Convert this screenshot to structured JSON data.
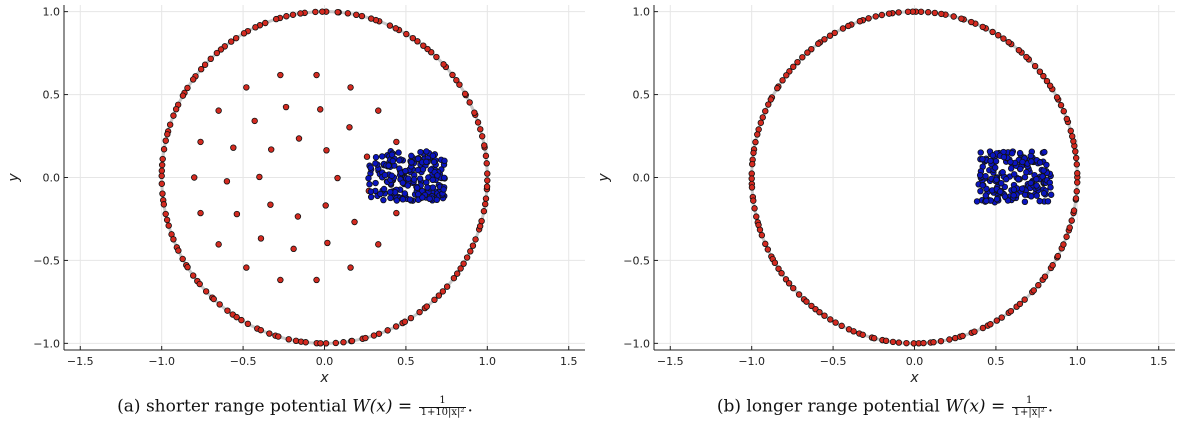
{
  "chart_data": [
    {
      "type": "scatter",
      "panel_id": "a",
      "xlabel": "x",
      "ylabel": "y",
      "xlim": [
        -1.6,
        1.6
      ],
      "ylim": [
        -1.04,
        1.04
      ],
      "xticks": [
        -1.5,
        -1.0,
        -0.5,
        0.0,
        0.5,
        1.0,
        1.5
      ],
      "yticks": [
        -1.0,
        -0.5,
        0.0,
        0.5,
        1.0
      ],
      "xtick_labels": [
        "−1.5",
        "−1.0",
        "−0.5",
        "0.0",
        "0.5",
        "1.0",
        "1.5"
      ],
      "ytick_labels": [
        "−1.0",
        "−0.5",
        "0.0",
        "0.5",
        "1.0"
      ],
      "grid": true,
      "caption_prefix": "(a) shorter range potential ",
      "caption_lhs": "W(x) = ",
      "caption_num": "1",
      "caption_den": "1+10|x|²",
      "caption_suffix": ".",
      "unit_circle": {
        "radius": 1.0,
        "color": "#c8c8c8"
      },
      "circle_points_count": 150,
      "interior_rings": [
        {
          "radius": 0.64,
          "count": 18
        },
        {
          "radius": 0.44,
          "count": 13
        },
        {
          "radius": 0.24,
          "count": 8
        }
      ],
      "cluster": {
        "x_range": [
          0.27,
          0.74
        ],
        "y_range": [
          -0.14,
          0.16
        ],
        "count": 200
      },
      "colors": {
        "circle_points": "#d42a20",
        "interior_points": "#d42a20",
        "cluster_points": "#0a14c0"
      }
    },
    {
      "type": "scatter",
      "panel_id": "b",
      "xlabel": "x",
      "ylabel": "y",
      "xlim": [
        -1.6,
        1.6
      ],
      "ylim": [
        -1.04,
        1.04
      ],
      "xticks": [
        -1.5,
        -1.0,
        -0.5,
        0.0,
        0.5,
        1.0,
        1.5
      ],
      "yticks": [
        -1.0,
        -0.5,
        0.0,
        0.5,
        1.0
      ],
      "xtick_labels": [
        "−1.5",
        "−1.0",
        "−0.5",
        "0.0",
        "0.5",
        "1.0",
        "1.5"
      ],
      "ytick_labels": [
        "−1.0",
        "−0.5",
        "0.0",
        "0.5",
        "1.0"
      ],
      "grid": true,
      "caption_prefix": "(b) longer range potential ",
      "caption_lhs": "W(x) = ",
      "caption_num": "1",
      "caption_den": "1+|x|²",
      "caption_suffix": ".",
      "unit_circle": {
        "radius": 1.0,
        "color": "#c8c8c8"
      },
      "circle_points_count": 170,
      "interior_rings": [],
      "cluster": {
        "x_range": [
          0.38,
          0.84
        ],
        "y_range": [
          -0.15,
          0.16
        ],
        "count": 200
      },
      "colors": {
        "circle_points": "#d42a20",
        "interior_points": "#d42a20",
        "cluster_points": "#0a14c0"
      }
    }
  ]
}
